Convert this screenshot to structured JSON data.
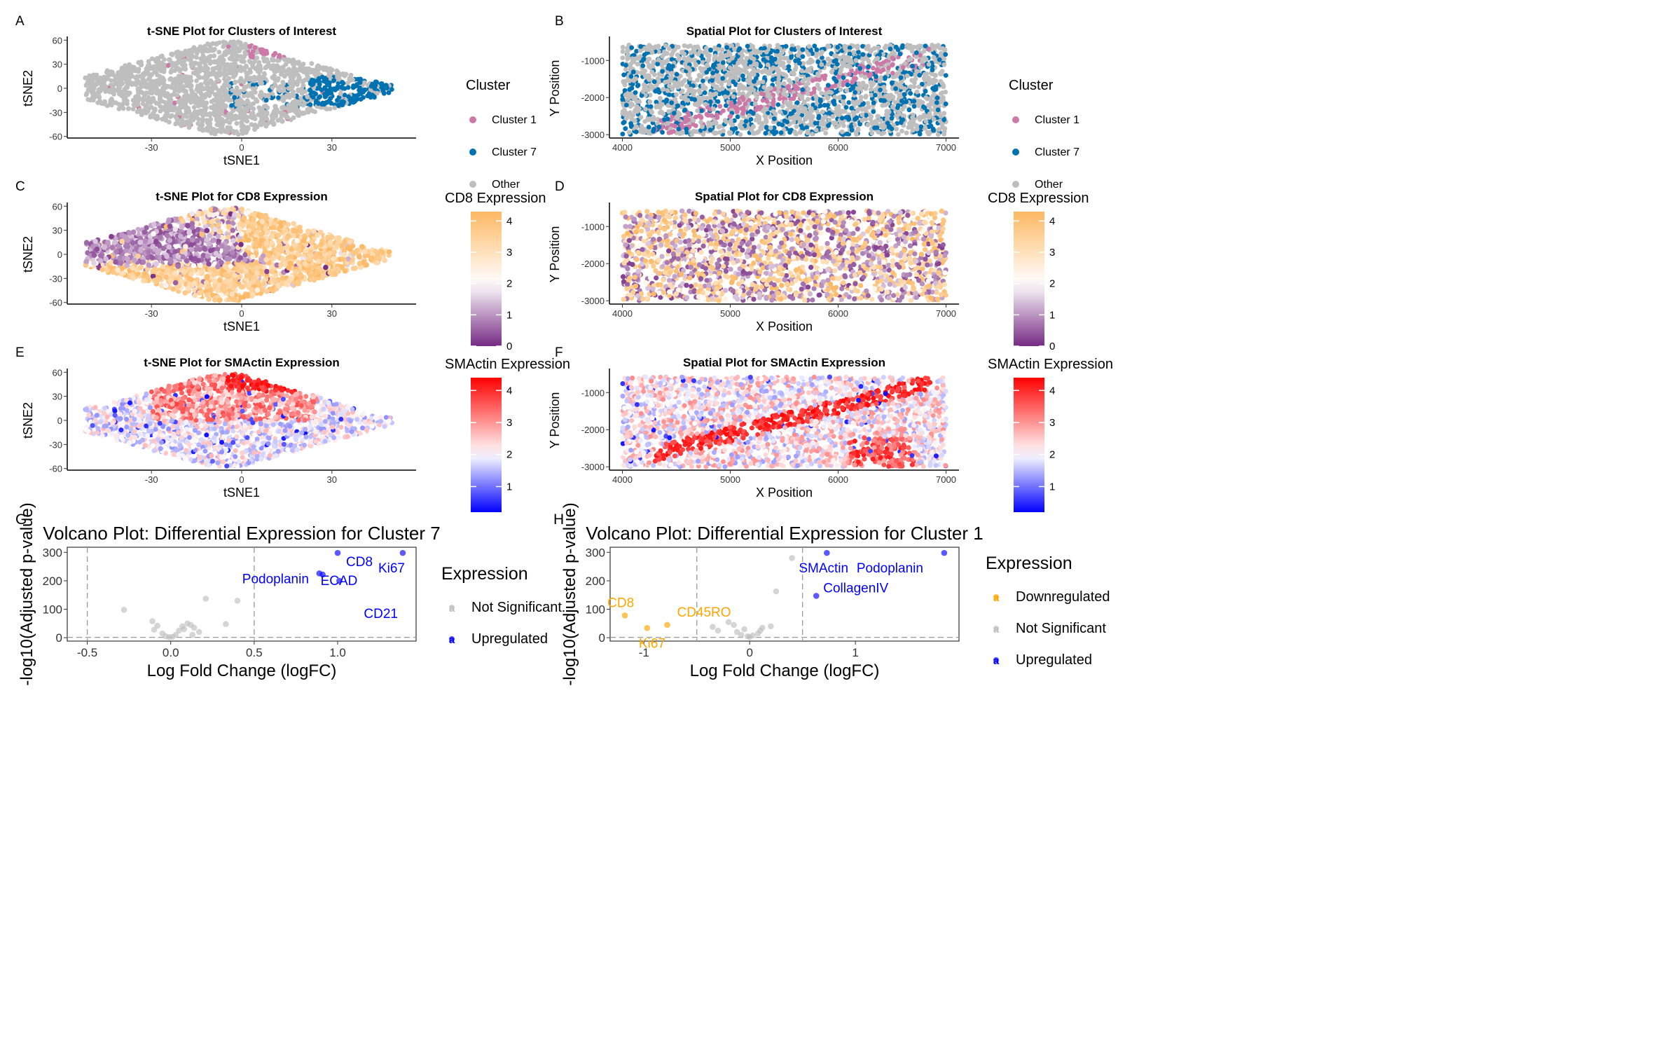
{
  "panels": {
    "A": {
      "letter": "A",
      "title": "t-SNE Plot for Clusters of Interest",
      "xlabel": "tSNE1",
      "ylabel": "tSNE2",
      "xticks": [
        "-30",
        "0",
        "30"
      ],
      "yticks": [
        "60",
        "30",
        "0",
        "-30",
        "-60"
      ],
      "legend_title": "Cluster",
      "legend_items": [
        "Cluster 1",
        "Cluster 7",
        "Other"
      ]
    },
    "B": {
      "letter": "B",
      "title": "Spatial Plot for Clusters of Interest",
      "xlabel": "X Position",
      "ylabel": "Y Position",
      "xticks": [
        "4000",
        "5000",
        "6000",
        "7000"
      ],
      "yticks": [
        "-1000",
        "-2000",
        "-3000"
      ],
      "legend_title": "Cluster",
      "legend_items": [
        "Cluster 1",
        "Cluster 7",
        "Other"
      ]
    },
    "C": {
      "letter": "C",
      "title": "t-SNE Plot for CD8 Expression",
      "xlabel": "tSNE1",
      "ylabel": "tSNE2",
      "xticks": [
        "-30",
        "0",
        "30"
      ],
      "yticks": [
        "60",
        "30",
        "0",
        "-30",
        "-60"
      ],
      "legend_title": "CD8 Expression",
      "legend_ticks": [
        "4",
        "3",
        "2",
        "1",
        "0"
      ]
    },
    "D": {
      "letter": "D",
      "title": "Spatial Plot for CD8 Expression",
      "xlabel": "X Position",
      "ylabel": "Y Position",
      "xticks": [
        "4000",
        "5000",
        "6000",
        "7000"
      ],
      "yticks": [
        "-1000",
        "-2000",
        "-3000"
      ],
      "legend_title": "CD8 Expression",
      "legend_ticks": [
        "4",
        "3",
        "2",
        "1",
        "0"
      ]
    },
    "E": {
      "letter": "E",
      "title": "t-SNE Plot for SMActin Expression",
      "xlabel": "tSNE1",
      "ylabel": "tSNE2",
      "xticks": [
        "-30",
        "0",
        "30"
      ],
      "yticks": [
        "60",
        "30",
        "0",
        "-30",
        "-60"
      ],
      "legend_title": "SMActin Expression",
      "legend_ticks": [
        "4",
        "3",
        "2",
        "1"
      ]
    },
    "F": {
      "letter": "F",
      "title": "Spatial Plot for SMActin Expression",
      "xlabel": "X Position",
      "ylabel": "Y Position",
      "xticks": [
        "4000",
        "5000",
        "6000",
        "7000"
      ],
      "yticks": [
        "-1000",
        "-2000",
        "-3000"
      ],
      "legend_title": "SMActin Expression",
      "legend_ticks": [
        "4",
        "3",
        "2",
        "1"
      ]
    },
    "G": {
      "letter": "G",
      "title": "Volcano Plot: Differential Expression for Cluster 7",
      "xlabel": "Log Fold Change (logFC)",
      "ylabel": "-log10(Adjusted p-value)",
      "xticks": [
        "-0.5",
        "0.0",
        "0.5",
        "1.0"
      ],
      "yticks": [
        "300",
        "200",
        "100",
        "0"
      ],
      "legend_title": "Expression",
      "legend_items": [
        "Not Significant",
        "Upregulated"
      ],
      "legend_key_glyph": "a"
    },
    "H": {
      "letter": "H",
      "title": "Volcano Plot: Differential Expression for Cluster 1",
      "xlabel": "Log Fold Change (logFC)",
      "ylabel": "-log10(Adjusted p-value)",
      "xticks": [
        "-1",
        "0",
        "1"
      ],
      "yticks": [
        "300",
        "200",
        "100",
        "0"
      ],
      "legend_title": "Expression",
      "legend_items": [
        "Downregulated",
        "Not Significant",
        "Upregulated"
      ],
      "legend_key_glyph": "a"
    }
  },
  "colors": {
    "cluster1": "#CC79A7",
    "cluster7": "#0072B2",
    "other": "#BEBEBE",
    "cd8_low": "#762A83",
    "cd8_mid": "#FFFFFF",
    "cd8_high": "#FDB863",
    "sma_low": "#0000FF",
    "sma_mid": "#FFFFFF",
    "sma_high": "#FF0000",
    "downregulated": "#FFA500",
    "not_significant": "#BEBEBE",
    "upregulated": "#0000FF"
  },
  "chart_data": [
    {
      "panel": "A",
      "type": "scatter",
      "title": "t-SNE Plot for Clusters of Interest",
      "xlabel": "tSNE1",
      "ylabel": "tSNE2",
      "xlim": [
        -58,
        58
      ],
      "ylim": [
        -62,
        62
      ],
      "series": [
        {
          "name": "Cluster 1",
          "description_points": [
            [
              10,
              58
            ],
            [
              18,
              56
            ],
            [
              25,
              52
            ],
            [
              14,
              50
            ],
            [
              -5,
              45
            ],
            [
              -30,
              10
            ]
          ]
        },
        {
          "name": "Cluster 7",
          "description_points": [
            [
              30,
              0
            ],
            [
              40,
              2
            ],
            [
              48,
              0
            ],
            [
              25,
              -10
            ],
            [
              5,
              10
            ],
            [
              -20,
              -10
            ]
          ]
        },
        {
          "name": "Other",
          "description_points": [
            [
              -40,
              0
            ],
            [
              -20,
              20
            ],
            [
              0,
              -30
            ],
            [
              10,
              30
            ],
            [
              -10,
              -40
            ]
          ]
        }
      ]
    },
    {
      "panel": "B",
      "type": "scatter",
      "title": "Spatial Plot for Clusters of Interest",
      "xlabel": "X Position",
      "ylabel": "Y Position",
      "xlim": [
        3880,
        7120
      ],
      "ylim": [
        -3090,
        -410
      ],
      "series": [
        {
          "name": "Cluster 1",
          "description_points": [
            [
              4500,
              -2700
            ],
            [
              5000,
              -2300
            ],
            [
              5500,
              -1700
            ],
            [
              6000,
              -1200
            ],
            [
              6500,
              -900
            ],
            [
              6700,
              -1000
            ]
          ]
        },
        {
          "name": "Cluster 7",
          "description_points": [
            [
              4100,
              -1000
            ],
            [
              4500,
              -1500
            ],
            [
              5800,
              -2300
            ],
            [
              6800,
              -2500
            ],
            [
              4300,
              -2900
            ]
          ]
        },
        {
          "name": "Other",
          "description_points": [
            [
              4000,
              -600
            ],
            [
              7000,
              -3000
            ]
          ]
        }
      ]
    },
    {
      "panel": "C",
      "type": "scatter",
      "title": "t-SNE Plot for CD8 Expression",
      "xlabel": "tSNE1",
      "ylabel": "tSNE2",
      "xlim": [
        -58,
        58
      ],
      "ylim": [
        -62,
        62
      ],
      "color_scale": {
        "name": "CD8 Expression",
        "min": 0,
        "max": 4.3,
        "low": "#762A83",
        "mid": "#FFFFFF",
        "high": "#FDB863"
      }
    },
    {
      "panel": "D",
      "type": "scatter",
      "title": "Spatial Plot for CD8 Expression",
      "xlabel": "X Position",
      "ylabel": "Y Position",
      "xlim": [
        3880,
        7120
      ],
      "ylim": [
        -3090,
        -410
      ],
      "color_scale": {
        "name": "CD8 Expression",
        "min": 0,
        "max": 4.3,
        "low": "#762A83",
        "mid": "#FFFFFF",
        "high": "#FDB863"
      }
    },
    {
      "panel": "E",
      "type": "scatter",
      "title": "t-SNE Plot for SMActin Expression",
      "xlabel": "tSNE1",
      "ylabel": "tSNE2",
      "xlim": [
        -58,
        58
      ],
      "ylim": [
        -62,
        62
      ],
      "color_scale": {
        "name": "SMActin Expression",
        "min": 0.2,
        "max": 4.4,
        "low": "#0000FF",
        "mid": "#FFFFFF",
        "high": "#FF0000"
      }
    },
    {
      "panel": "F",
      "type": "scatter",
      "title": "Spatial Plot for SMActin Expression",
      "xlabel": "X Position",
      "ylabel": "Y Position",
      "xlim": [
        3880,
        7120
      ],
      "ylim": [
        -3090,
        -410
      ],
      "color_scale": {
        "name": "SMActin Expression",
        "min": 0.2,
        "max": 4.4,
        "low": "#0000FF",
        "mid": "#FFFFFF",
        "high": "#FF0000"
      }
    },
    {
      "panel": "G",
      "type": "scatter",
      "title": "Volcano Plot: Differential Expression for Cluster 7",
      "xlabel": "Log Fold Change (logFC)",
      "ylabel": "-log10(Adjusted p-value)",
      "xlim": [
        -0.62,
        1.47
      ],
      "ylim": [
        -12,
        318
      ],
      "thresholds": {
        "logfc": [
          -0.5,
          0.5
        ],
        "p": 1.3
      },
      "series": [
        {
          "name": "Not Significant",
          "points": [
            {
              "x": -0.28,
              "y": 98
            },
            {
              "x": -0.11,
              "y": 58
            },
            {
              "x": -0.08,
              "y": 42
            },
            {
              "x": -0.1,
              "y": 28
            },
            {
              "x": -0.05,
              "y": 15
            },
            {
              "x": -0.03,
              "y": 5
            },
            {
              "x": -0.01,
              "y": 2
            },
            {
              "x": 0.01,
              "y": 3
            },
            {
              "x": 0.03,
              "y": 10
            },
            {
              "x": 0.05,
              "y": 25
            },
            {
              "x": 0.07,
              "y": 40
            },
            {
              "x": 0.08,
              "y": 30
            },
            {
              "x": 0.1,
              "y": 50
            },
            {
              "x": 0.12,
              "y": 45
            },
            {
              "x": 0.14,
              "y": 35
            },
            {
              "x": 0.17,
              "y": 20
            },
            {
              "x": 0.21,
              "y": 137
            },
            {
              "x": 0.33,
              "y": 48
            },
            {
              "x": 0.4,
              "y": 130
            },
            {
              "x": 0.13,
              "y": 10
            }
          ]
        },
        {
          "name": "Upregulated",
          "points": [
            {
              "x": 0.89,
              "y": 226,
              "label": "Podoplanin"
            },
            {
              "x": 0.91,
              "y": 222,
              "label": "ECAD"
            },
            {
              "x": 1.0,
              "y": 298,
              "label": "CD8"
            },
            {
              "x": 1.01,
              "y": 200,
              "label": "CD21"
            },
            {
              "x": 1.39,
              "y": 298,
              "label": "Ki67"
            }
          ]
        }
      ]
    },
    {
      "panel": "H",
      "type": "scatter",
      "title": "Volcano Plot: Differential Expression for Cluster 1",
      "xlabel": "Log Fold Change (logFC)",
      "ylabel": "-log10(Adjusted p-value)",
      "xlim": [
        -1.32,
        1.98
      ],
      "ylim": [
        -12,
        318
      ],
      "thresholds": {
        "logfc": [
          -0.5,
          0.5
        ],
        "p": 1.3
      },
      "series": [
        {
          "name": "Downregulated",
          "points": [
            {
              "x": -1.18,
              "y": 78,
              "label": "CD8"
            },
            {
              "x": -0.97,
              "y": 34,
              "label": "Ki67"
            },
            {
              "x": -0.78,
              "y": 45,
              "label": "CD45RO"
            }
          ]
        },
        {
          "name": "Not Significant",
          "points": [
            {
              "x": -0.35,
              "y": 38
            },
            {
              "x": -0.3,
              "y": 25
            },
            {
              "x": -0.2,
              "y": 55
            },
            {
              "x": -0.15,
              "y": 45
            },
            {
              "x": -0.12,
              "y": 20
            },
            {
              "x": -0.08,
              "y": 10
            },
            {
              "x": -0.05,
              "y": 30
            },
            {
              "x": -0.02,
              "y": 5
            },
            {
              "x": 0.0,
              "y": 2
            },
            {
              "x": 0.03,
              "y": 8
            },
            {
              "x": 0.08,
              "y": 15
            },
            {
              "x": 0.1,
              "y": 25
            },
            {
              "x": 0.12,
              "y": 35
            },
            {
              "x": 0.2,
              "y": 40
            },
            {
              "x": 0.25,
              "y": 163
            },
            {
              "x": 0.4,
              "y": 280
            }
          ]
        },
        {
          "name": "Upregulated",
          "points": [
            {
              "x": 0.73,
              "y": 298,
              "label": "SMActin"
            },
            {
              "x": 0.63,
              "y": 147,
              "label": "CollagenIV"
            },
            {
              "x": 1.84,
              "y": 298,
              "label": "Podoplanin"
            }
          ]
        }
      ]
    }
  ]
}
